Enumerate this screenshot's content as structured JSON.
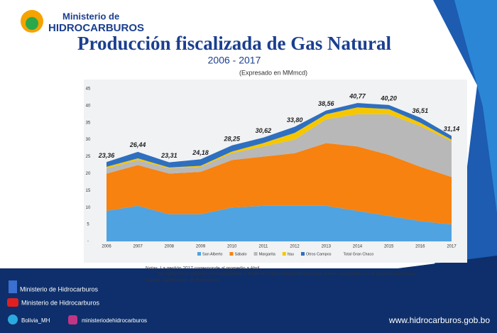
{
  "header": {
    "logo_line1": "Ministerio de",
    "logo_line2": "HIDROCARBUROS"
  },
  "chart_data": {
    "type": "stacked-area",
    "title": "Producción fiscalizada de Gas Natural",
    "subtitle": "2006 - 2017",
    "unit": "(Expresado en MMmcd)",
    "categories": [
      "2006",
      "2007",
      "2008",
      "2009",
      "2010",
      "2011",
      "2012",
      "2013",
      "2014",
      "2015",
      "2016",
      "2017"
    ],
    "series": [
      {
        "name": "San Alberto",
        "color": "#4fa3e0",
        "values": [
          9,
          10.5,
          8,
          8,
          10,
          10.5,
          10.5,
          10.5,
          9,
          7.5,
          6,
          5
        ]
      },
      {
        "name": "Sábalo",
        "color": "#f7820f",
        "values": [
          11,
          12,
          12,
          12.5,
          14,
          14.5,
          15.5,
          18.5,
          19,
          18,
          16,
          14
        ]
      },
      {
        "name": "Margarita",
        "color": "#b8b8b8",
        "values": [
          1.5,
          1.5,
          1.5,
          1.5,
          2,
          3,
          4,
          7,
          9.5,
          12,
          12,
          10.5
        ]
      },
      {
        "name": "Itau",
        "color": "#f6c700",
        "values": [
          0.5,
          0.5,
          0.3,
          0.3,
          0.5,
          1,
          2,
          1.5,
          2,
          1.5,
          1,
          0.5
        ]
      },
      {
        "name": "Otros Campos",
        "color": "#2e6fc0",
        "values": [
          1.4,
          1.9,
          1.5,
          1.9,
          1.8,
          1.6,
          1.8,
          1.1,
          1.3,
          1.2,
          1.5,
          1.1
        ]
      }
    ],
    "totals": {
      "name": "Total Gran Chaco",
      "values": [
        23.36,
        26.44,
        23.31,
        24.18,
        28.25,
        30.62,
        33.8,
        38.56,
        40.77,
        40.2,
        36.51,
        31.14
      ],
      "value_labels": [
        "23,36",
        "26,44",
        "23,31",
        "24,18",
        "28,25",
        "30,62",
        "33,80",
        "38,56",
        "40,77",
        "40,20",
        "36,51",
        "31,14"
      ]
    },
    "ylim": [
      0,
      45
    ],
    "yticks": [
      {
        "value": 0,
        "label": "-"
      },
      5,
      10,
      15,
      20,
      25,
      30,
      35,
      40,
      45
    ]
  },
  "notes": [
    "Notas. La gestión 2017 corresponde al promedio a Abril.",
    "Se incluye la producción correspondiente a Tarija del Campo Margarita-Huacaya que es compartido con la provincia O'Connor",
    "Fuente: Certificación de Producción"
  ],
  "footer": {
    "facebook": "Ministerio de Hidrocarburos",
    "youtube": "Ministerio de Hidrocarburos",
    "twitter": "Bolivia_MH",
    "instagram": "ministeriodehidrocarburos",
    "website": "www.hidrocarburos.gob.bo"
  }
}
